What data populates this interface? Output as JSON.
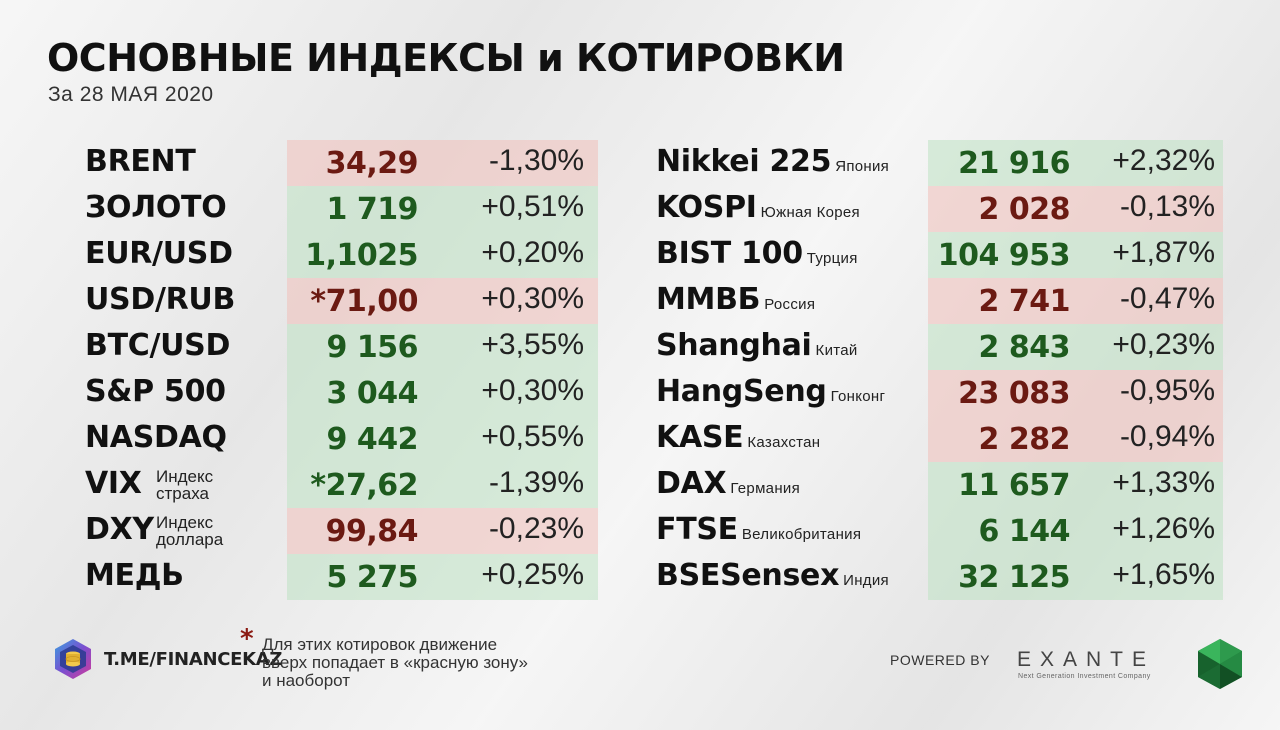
{
  "title": "ОСНОВНЫЕ ИНДЕКСЫ и КОТИРОВКИ",
  "subtitle": "За 28 МАЯ 2020",
  "left_rows": [
    {
      "name": "BRENT",
      "value": "34,29",
      "change": "-1,30%",
      "trend": "down"
    },
    {
      "name": "ЗОЛОТО",
      "value": "1 719",
      "change": "+0,51%",
      "trend": "up"
    },
    {
      "name": "EUR/USD",
      "value": "1,1025",
      "change": "+0,20%",
      "trend": "up"
    },
    {
      "name": "USD/RUB",
      "value": "*71,00",
      "change": "+0,30%",
      "trend": "down"
    },
    {
      "name": "BTC/USD",
      "value": "9 156",
      "change": "+3,55%",
      "trend": "up"
    },
    {
      "name": "S&P 500",
      "value": "3 044",
      "change": "+0,30%",
      "trend": "up"
    },
    {
      "name": "NASDAQ",
      "value": "9 442",
      "change": "+0,55%",
      "trend": "up"
    },
    {
      "name": "VIX",
      "sub1": "Индекс",
      "sub2": "страха",
      "value": "*27,62",
      "change": "-1,39%",
      "trend": "up"
    },
    {
      "name": "DXY",
      "sub1": "Индекс",
      "sub2": "доллара",
      "value": "99,84",
      "change": "-0,23%",
      "trend": "down"
    },
    {
      "name": "МЕДЬ",
      "value": "5 275",
      "change": "+0,25%",
      "trend": "up"
    }
  ],
  "right_rows": [
    {
      "name": "Nikkei 225",
      "region": "Япония",
      "value": "21 916",
      "change": "+2,32%",
      "trend": "up"
    },
    {
      "name": "KOSPI",
      "region": "Южная Корея",
      "value": "2 028",
      "change": "-0,13%",
      "trend": "down"
    },
    {
      "name": "BIST 100",
      "region": "Турция",
      "value": "104 953",
      "change": "+1,87%",
      "trend": "up"
    },
    {
      "name": "ММВБ",
      "region": "Россия",
      "value": "2 741",
      "change": "-0,47%",
      "trend": "down"
    },
    {
      "name": "Shanghai",
      "region": "Китай",
      "value": "2 843",
      "change": "+0,23%",
      "trend": "up"
    },
    {
      "name": "HangSeng",
      "region": "Гонконг",
      "value": "23 083",
      "change": "-0,95%",
      "trend": "down"
    },
    {
      "name": "KASE",
      "region": "Казахстан",
      "value": "2 282",
      "change": "-0,94%",
      "trend": "down"
    },
    {
      "name": "DAX",
      "region": "Германия",
      "value": "11 657",
      "change": "+1,33%",
      "trend": "up"
    },
    {
      "name": "FTSE",
      "region": "Великобритания",
      "value": "6 144",
      "change": "+1,26%",
      "trend": "up"
    },
    {
      "name": "BSESensex",
      "region": "Индия",
      "value": "32 125",
      "change": "+1,65%",
      "trend": "up"
    }
  ],
  "footer": {
    "link": "T.ME/FINANCEKAZ",
    "asterisk": "*",
    "note_lines": [
      "Для этих котировок движение",
      "вверх попадает в «красную зону»",
      "и наоборот"
    ],
    "powered_by": "POWERED BY",
    "brand": "EXANTE",
    "brand_tagline": "Next Generation Investment Company"
  },
  "colors": {
    "up_bg": "#cfe6d2",
    "down_bg": "#f0cfca",
    "up_text": "#1e5a1e",
    "down_text": "#6b1a12"
  },
  "icons": [
    "coin-stack-logo-icon",
    "exante-gem-icon"
  ]
}
